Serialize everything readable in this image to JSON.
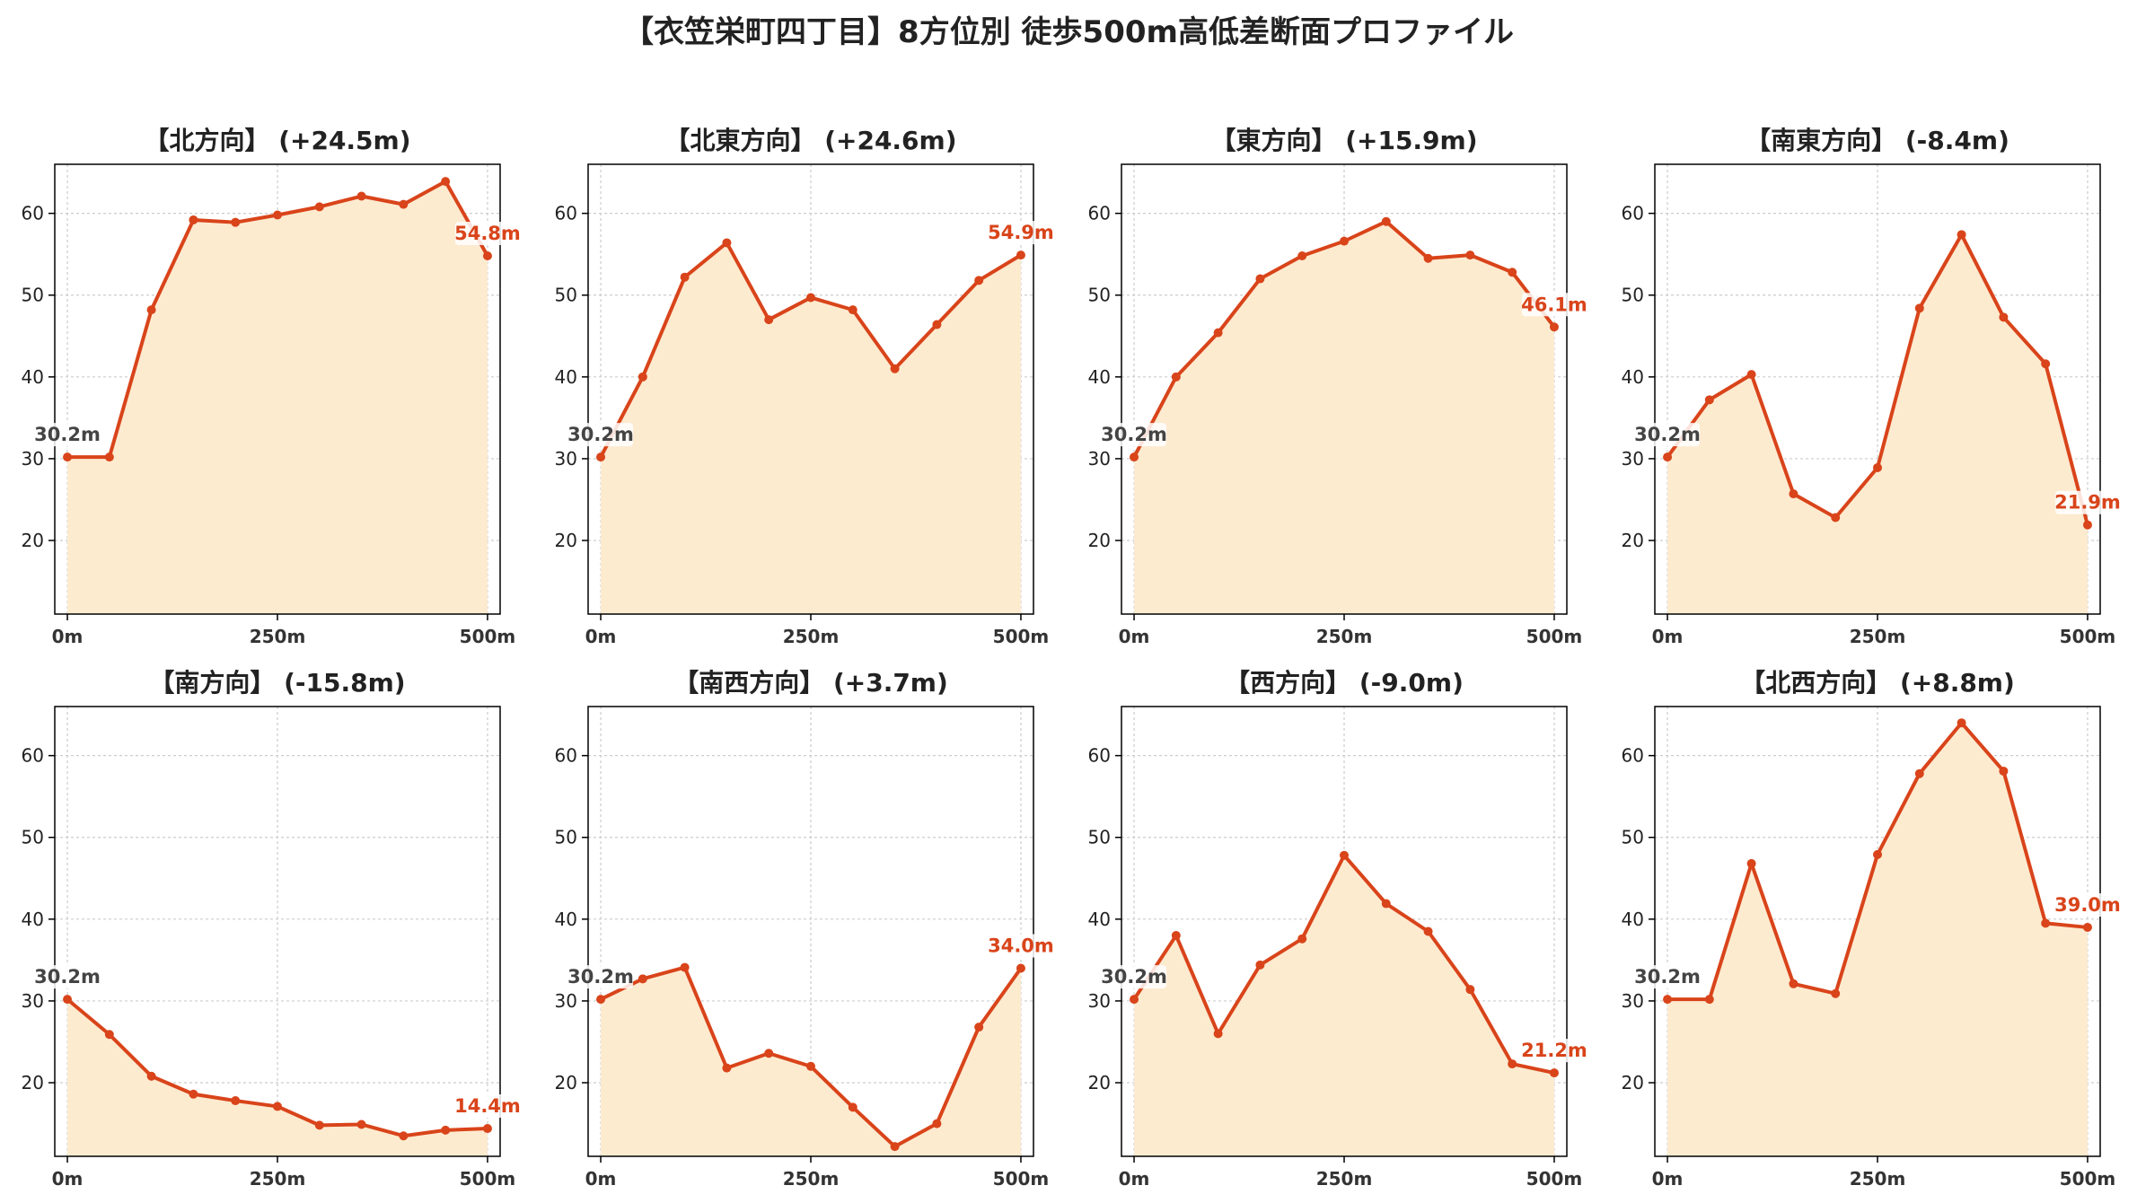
{
  "title": "【衣笠栄町四丁目】8方位別 徒歩500m高低差断面プロファイル",
  "colors": {
    "line": "#d9441a",
    "fill": "#fdebd0",
    "grid": "#cccccc",
    "start_label": "#444444"
  },
  "chart_data": [
    {
      "type": "area",
      "title": "【北方向】 (+24.5m)",
      "start_label": "30.2m",
      "end_label": "54.8m",
      "x": [
        0,
        50,
        100,
        150,
        200,
        250,
        300,
        350,
        400,
        450,
        500
      ],
      "values": [
        30.2,
        30.2,
        48.2,
        59.2,
        58.9,
        59.8,
        60.8,
        62.1,
        61.1,
        63.9,
        54.8
      ],
      "xticks": [
        "0m",
        "250m",
        "500m"
      ],
      "yticks": [
        20,
        30,
        40,
        50,
        60
      ],
      "ylim": [
        11,
        66
      ],
      "xlim": [
        -15,
        515
      ],
      "grid": true
    },
    {
      "type": "area",
      "title": "【北東方向】 (+24.6m)",
      "start_label": "30.2m",
      "end_label": "54.9m",
      "x": [
        0,
        50,
        100,
        150,
        200,
        250,
        300,
        350,
        400,
        450,
        500
      ],
      "values": [
        30.2,
        40.0,
        52.2,
        56.4,
        47.0,
        49.7,
        48.2,
        41.0,
        46.4,
        51.8,
        54.9
      ],
      "xticks": [
        "0m",
        "250m",
        "500m"
      ],
      "yticks": [
        20,
        30,
        40,
        50,
        60
      ],
      "ylim": [
        11,
        66
      ],
      "xlim": [
        -15,
        515
      ],
      "grid": true
    },
    {
      "type": "area",
      "title": "【東方向】 (+15.9m)",
      "start_label": "30.2m",
      "end_label": "46.1m",
      "x": [
        0,
        50,
        100,
        150,
        200,
        250,
        300,
        350,
        400,
        450,
        500
      ],
      "values": [
        30.2,
        40.0,
        45.4,
        52.0,
        54.8,
        56.6,
        59.0,
        54.5,
        54.9,
        52.8,
        46.1
      ],
      "xticks": [
        "0m",
        "250m",
        "500m"
      ],
      "yticks": [
        20,
        30,
        40,
        50,
        60
      ],
      "ylim": [
        11,
        66
      ],
      "xlim": [
        -15,
        515
      ],
      "grid": true
    },
    {
      "type": "area",
      "title": "【南東方向】 (-8.4m)",
      "start_label": "30.2m",
      "end_label": "21.9m",
      "x": [
        0,
        50,
        100,
        150,
        200,
        250,
        300,
        350,
        400,
        450,
        500
      ],
      "values": [
        30.2,
        37.2,
        40.3,
        25.7,
        22.8,
        28.9,
        48.4,
        57.4,
        47.3,
        41.6,
        21.9
      ],
      "xticks": [
        "0m",
        "250m",
        "500m"
      ],
      "yticks": [
        20,
        30,
        40,
        50,
        60
      ],
      "ylim": [
        11,
        66
      ],
      "xlim": [
        -15,
        515
      ],
      "grid": true
    },
    {
      "type": "area",
      "title": "【南方向】 (-15.8m)",
      "start_label": "30.2m",
      "end_label": "14.4m",
      "x": [
        0,
        50,
        100,
        150,
        200,
        250,
        300,
        350,
        400,
        450,
        500
      ],
      "values": [
        30.2,
        25.9,
        20.8,
        18.6,
        17.8,
        17.1,
        14.8,
        14.9,
        13.5,
        14.2,
        14.4
      ],
      "xticks": [
        "0m",
        "250m",
        "500m"
      ],
      "yticks": [
        20,
        30,
        40,
        50,
        60
      ],
      "ylim": [
        11,
        66
      ],
      "xlim": [
        -15,
        515
      ],
      "grid": true
    },
    {
      "type": "area",
      "title": "【南西方向】 (+3.7m)",
      "start_label": "30.2m",
      "end_label": "34.0m",
      "x": [
        0,
        50,
        100,
        150,
        200,
        250,
        300,
        350,
        400,
        450,
        500
      ],
      "values": [
        30.2,
        32.7,
        34.1,
        21.8,
        23.6,
        22.0,
        17.0,
        12.2,
        15.0,
        26.8,
        34.0
      ],
      "xticks": [
        "0m",
        "250m",
        "500m"
      ],
      "yticks": [
        20,
        30,
        40,
        50,
        60
      ],
      "ylim": [
        11,
        66
      ],
      "xlim": [
        -15,
        515
      ],
      "grid": true
    },
    {
      "type": "area",
      "title": "【西方向】 (-9.0m)",
      "start_label": "30.2m",
      "end_label": "21.2m",
      "x": [
        0,
        50,
        100,
        150,
        200,
        250,
        300,
        350,
        400,
        450,
        500
      ],
      "values": [
        30.2,
        38.0,
        26.0,
        34.4,
        37.6,
        47.8,
        41.9,
        38.5,
        31.4,
        22.3,
        21.2
      ],
      "xticks": [
        "0m",
        "250m",
        "500m"
      ],
      "yticks": [
        20,
        30,
        40,
        50,
        60
      ],
      "ylim": [
        11,
        66
      ],
      "xlim": [
        -15,
        515
      ],
      "grid": true
    },
    {
      "type": "area",
      "title": "【北西方向】 (+8.8m)",
      "start_label": "30.2m",
      "end_label": "39.0m",
      "x": [
        0,
        50,
        100,
        150,
        200,
        250,
        300,
        350,
        400,
        450,
        500
      ],
      "values": [
        30.2,
        30.2,
        46.8,
        32.1,
        30.9,
        47.9,
        57.8,
        64.0,
        58.1,
        39.5,
        39.0
      ],
      "xticks": [
        "0m",
        "250m",
        "500m"
      ],
      "yticks": [
        20,
        30,
        40,
        50,
        60
      ],
      "ylim": [
        11,
        66
      ],
      "xlim": [
        -15,
        515
      ],
      "grid": true
    }
  ]
}
